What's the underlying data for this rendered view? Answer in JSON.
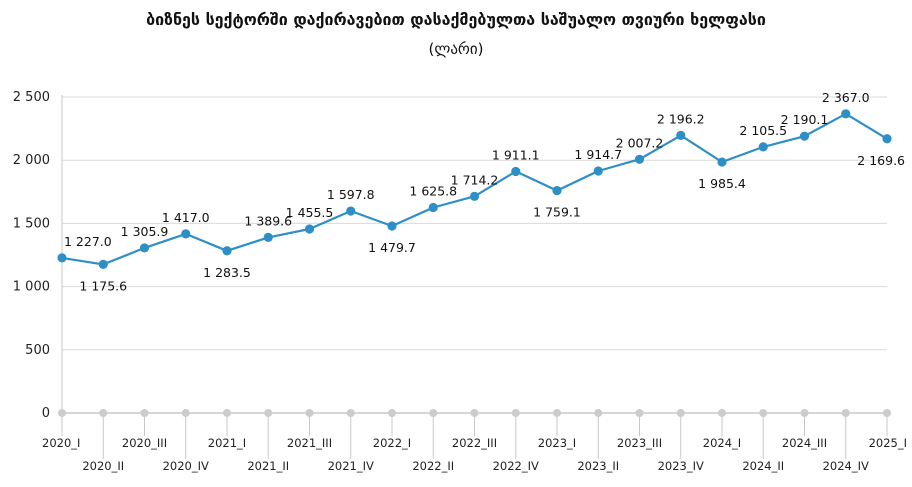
{
  "chart_data": {
    "type": "line",
    "title": "ბიზნეს სექტორში დაქირავებით დასაქმებულთა საშუალო თვიური ხელფასი",
    "subtitle": "(ლარი)",
    "categories": [
      "2020_I",
      "2020_II",
      "2020_III",
      "2020_IV",
      "2021_I",
      "2021_II",
      "2021_III",
      "2021_IV",
      "2022_I",
      "2022_II",
      "2022_III",
      "2022_IV",
      "2023_I",
      "2023_II",
      "2023_III",
      "2023_IV",
      "2024_I",
      "2024_II",
      "2024_III",
      "2024_IV",
      "2025_I"
    ],
    "series": [
      {
        "values": [
          1227.0,
          1175.6,
          1305.9,
          1417.0,
          1283.5,
          1389.6,
          1455.5,
          1597.8,
          1479.7,
          1625.8,
          1714.2,
          1911.1,
          1759.1,
          1914.7,
          2007.2,
          2196.2,
          1985.4,
          2105.5,
          2190.1,
          2367.0,
          2169.6
        ],
        "labels": [
          "1 227.0",
          "1 175.6",
          "1 305.9",
          "1 417.0",
          "1 283.5",
          "1 389.6",
          "1 455.5",
          "1 597.8",
          "1 479.7",
          "1 625.8",
          "1 714.2",
          "1 911.1",
          "1 759.1",
          "1 914.7",
          "2 007.2",
          "2 196.2",
          "1 985.4",
          "2 105.5",
          "2 190.1",
          "2 367.0",
          "2 169.6"
        ],
        "color": "#2e8fc7"
      }
    ],
    "ylim": [
      0,
      2500
    ],
    "yticks": [
      0,
      500,
      1000,
      1500,
      2000,
      2500
    ],
    "ytick_labels": [
      "0",
      "500",
      "1 000",
      "1 500",
      "2 000",
      "2 500"
    ],
    "grid": true,
    "legend": "none",
    "axis_color": "#c8c8c8"
  }
}
